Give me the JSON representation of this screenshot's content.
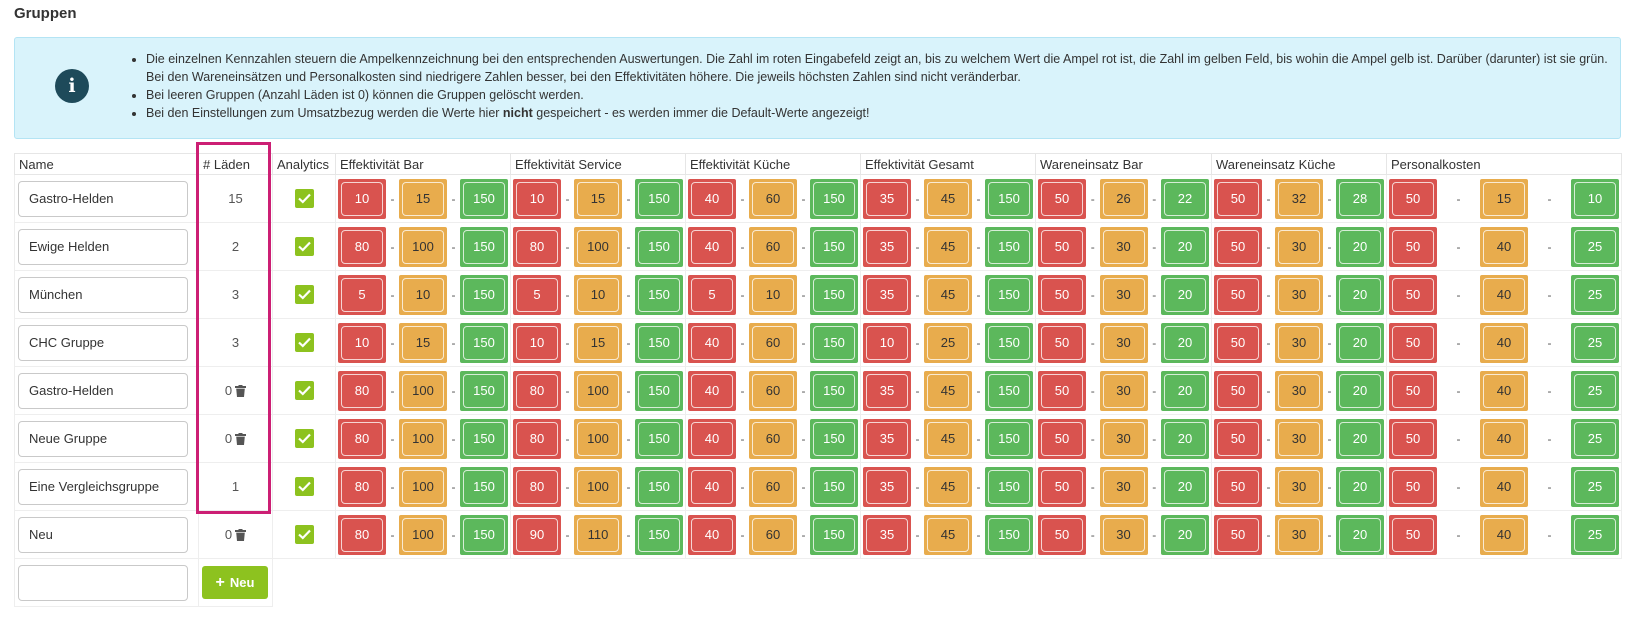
{
  "page": {
    "title": "Gruppen"
  },
  "info": {
    "bullets": [
      "Die einzelnen Kennzahlen steuern die Ampelkennzeichnung bei den entsprechenden Auswertungen. Die Zahl im roten Eingabefeld zeigt an, bis zu welchem Wert die Ampel rot ist, die Zahl im gelben Feld, bis wohin die Ampel gelb ist. Darüber (darunter) ist sie grün. Bei den Wareneinsätzen und Personalkosten sind niedrigere Zahlen besser, bei den Effektivitäten höhere. Die jeweils höchsten Zahlen sind nicht veränderbar.",
      "Bei leeren Gruppen (Anzahl Läden ist 0) können die Gruppen gelöscht werden."
    ],
    "bullet3_pre": "Bei den Einstellungen zum Umsatzbezug werden die Werte hier ",
    "bullet3_bold": "nicht",
    "bullet3_post": " gespeichert - es werden immer die Default-Werte angezeigt!"
  },
  "table": {
    "headers": {
      "name": "Name",
      "count": "# Läden",
      "analytics": "Analytics",
      "kpis": [
        "Effektivität Bar",
        "Effektivität Service",
        "Effektivität Küche",
        "Effektivität Gesamt",
        "Wareneinsatz Bar",
        "Wareneinsatz Küche",
        "Personalkosten"
      ]
    },
    "rows": [
      {
        "name": "Gastro-Helden",
        "count": "15",
        "deletable": false,
        "kpis": [
          [
            "10",
            "15",
            "150"
          ],
          [
            "10",
            "15",
            "150"
          ],
          [
            "40",
            "60",
            "150"
          ],
          [
            "35",
            "45",
            "150"
          ],
          [
            "50",
            "26",
            "22"
          ],
          [
            "50",
            "32",
            "28"
          ],
          [
            "50",
            "15",
            "10"
          ]
        ]
      },
      {
        "name": "Ewige Helden",
        "count": "2",
        "deletable": false,
        "kpis": [
          [
            "80",
            "100",
            "150"
          ],
          [
            "80",
            "100",
            "150"
          ],
          [
            "40",
            "60",
            "150"
          ],
          [
            "35",
            "45",
            "150"
          ],
          [
            "50",
            "30",
            "20"
          ],
          [
            "50",
            "30",
            "20"
          ],
          [
            "50",
            "40",
            "25"
          ]
        ]
      },
      {
        "name": "München",
        "count": "3",
        "deletable": false,
        "kpis": [
          [
            "5",
            "10",
            "150"
          ],
          [
            "5",
            "10",
            "150"
          ],
          [
            "5",
            "10",
            "150"
          ],
          [
            "35",
            "45",
            "150"
          ],
          [
            "50",
            "30",
            "20"
          ],
          [
            "50",
            "30",
            "20"
          ],
          [
            "50",
            "40",
            "25"
          ]
        ]
      },
      {
        "name": "CHC Gruppe",
        "count": "3",
        "deletable": false,
        "kpis": [
          [
            "10",
            "15",
            "150"
          ],
          [
            "10",
            "15",
            "150"
          ],
          [
            "40",
            "60",
            "150"
          ],
          [
            "10",
            "25",
            "150"
          ],
          [
            "50",
            "30",
            "20"
          ],
          [
            "50",
            "30",
            "20"
          ],
          [
            "50",
            "40",
            "25"
          ]
        ]
      },
      {
        "name": "Gastro-Helden",
        "count": "0",
        "deletable": true,
        "kpis": [
          [
            "80",
            "100",
            "150"
          ],
          [
            "80",
            "100",
            "150"
          ],
          [
            "40",
            "60",
            "150"
          ],
          [
            "35",
            "45",
            "150"
          ],
          [
            "50",
            "30",
            "20"
          ],
          [
            "50",
            "30",
            "20"
          ],
          [
            "50",
            "40",
            "25"
          ]
        ]
      },
      {
        "name": "Neue Gruppe",
        "count": "0",
        "deletable": true,
        "kpis": [
          [
            "80",
            "100",
            "150"
          ],
          [
            "80",
            "100",
            "150"
          ],
          [
            "40",
            "60",
            "150"
          ],
          [
            "35",
            "45",
            "150"
          ],
          [
            "50",
            "30",
            "20"
          ],
          [
            "50",
            "30",
            "20"
          ],
          [
            "50",
            "40",
            "25"
          ]
        ]
      },
      {
        "name": "Eine Vergleichsgruppe",
        "count": "1",
        "deletable": false,
        "kpis": [
          [
            "80",
            "100",
            "150"
          ],
          [
            "80",
            "100",
            "150"
          ],
          [
            "40",
            "60",
            "150"
          ],
          [
            "35",
            "45",
            "150"
          ],
          [
            "50",
            "30",
            "20"
          ],
          [
            "50",
            "30",
            "20"
          ],
          [
            "50",
            "40",
            "25"
          ]
        ]
      },
      {
        "name": "Neu",
        "count": "0",
        "deletable": true,
        "kpis": [
          [
            "80",
            "100",
            "150"
          ],
          [
            "90",
            "110",
            "150"
          ],
          [
            "40",
            "60",
            "150"
          ],
          [
            "35",
            "45",
            "150"
          ],
          [
            "50",
            "30",
            "20"
          ],
          [
            "50",
            "30",
            "20"
          ],
          [
            "50",
            "40",
            "25"
          ]
        ]
      }
    ],
    "new_row": {
      "name_value": "",
      "button_label": "Neu",
      "button_icon": "plus-icon"
    }
  },
  "colors": {
    "red": "#d9534f",
    "yellow": "#e8ac4d",
    "green": "#5cb85c",
    "accent_green": "#8dc21f",
    "highlight": "#cc1f74",
    "info_bg": "#d9f3fb"
  }
}
